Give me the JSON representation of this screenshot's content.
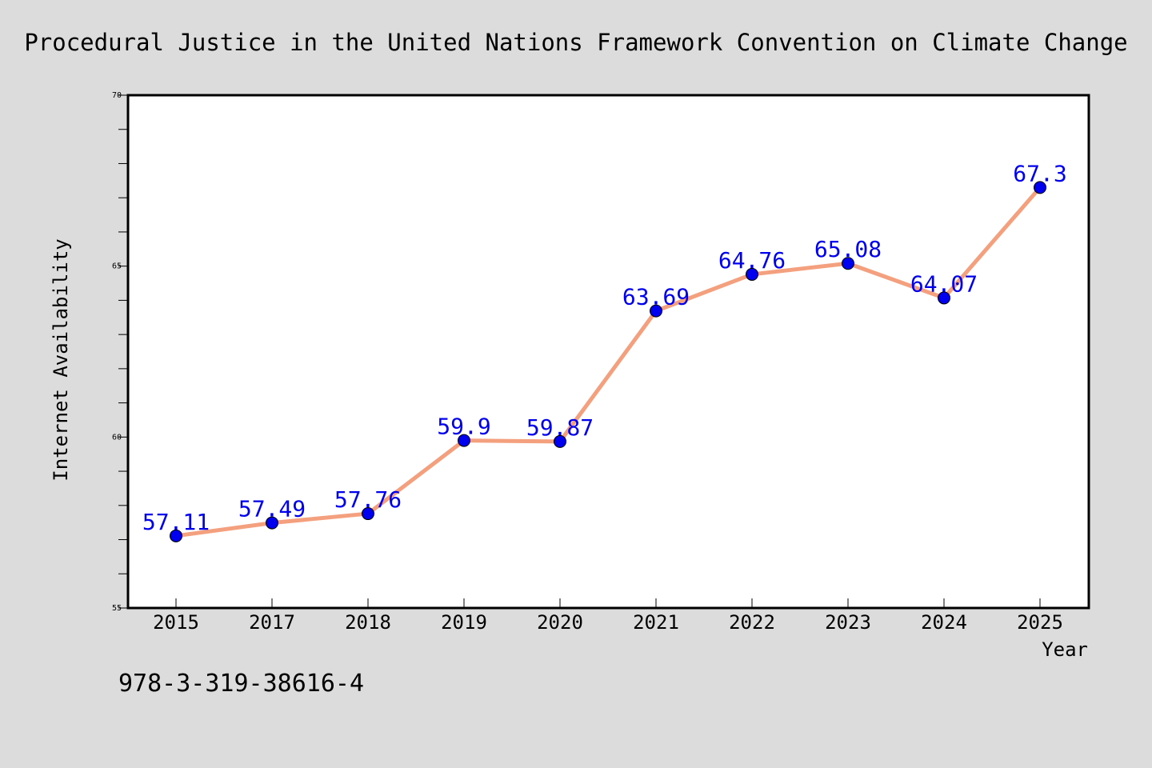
{
  "chart_data": {
    "type": "line",
    "title": "Procedural Justice in the United Nations Framework Convention on Climate Change",
    "xlabel": "Year",
    "ylabel": "Internet Availability",
    "categories": [
      "2015",
      "2017",
      "2018",
      "2019",
      "2020",
      "2021",
      "2022",
      "2023",
      "2024",
      "2025"
    ],
    "series": [
      {
        "values": [
          57.11,
          57.49,
          57.76,
          59.9,
          59.87,
          63.69,
          64.76,
          65.08,
          64.07,
          67.3
        ],
        "data_labels": [
          "57.11",
          "57.49",
          "57.76",
          "59.9",
          "59.87",
          "63.69",
          "64.76",
          "65.08",
          "64.07",
          "67.3"
        ]
      }
    ],
    "ylim": [
      55,
      70
    ],
    "yticks": [
      "55",
      "60",
      "65",
      "70"
    ],
    "grid": false,
    "colors": {
      "line": "#f4a07e",
      "marker": "#0000ee",
      "label": "#0000ee",
      "plot_bg": "#ffffff",
      "page_bg": "#dcdcdc"
    }
  },
  "footnote": "978-3-319-38616-4"
}
